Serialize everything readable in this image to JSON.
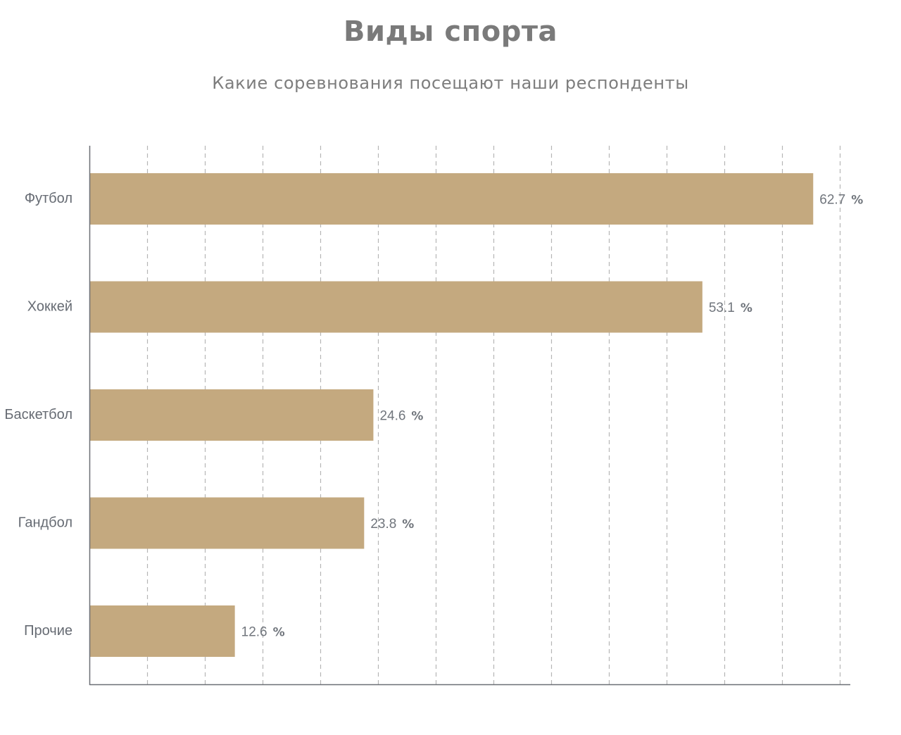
{
  "chart_data": {
    "type": "bar",
    "orientation": "horizontal",
    "title": "Виды спорта",
    "subtitle": "Какие соревнования посещают наши респонденты",
    "categories": [
      "Футбол",
      "Хоккей",
      "Баскетбол",
      "Гандбол",
      "Прочие"
    ],
    "values": [
      62.7,
      53.1,
      24.6,
      23.8,
      12.6
    ],
    "unit": "%",
    "xlim": [
      0,
      65
    ],
    "grid": true,
    "legend": "none",
    "colors": {
      "bar": "#c4a97f",
      "grid": "#b5b5b5",
      "axis": "#6b6f75",
      "title": "#7a7a7a",
      "text": "#666b73"
    }
  }
}
